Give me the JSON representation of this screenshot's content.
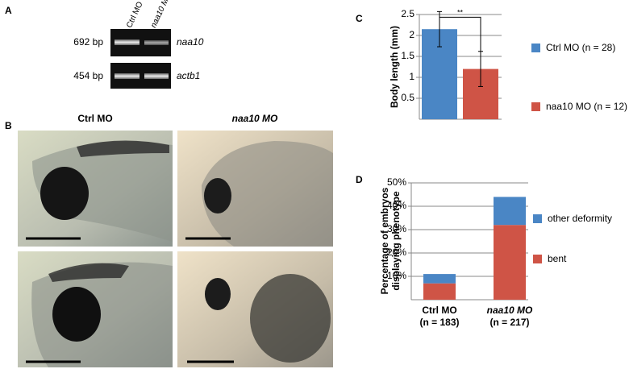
{
  "panels": [
    "A",
    "B",
    "C",
    "D"
  ],
  "gel": {
    "lanes": [
      "Ctrl MO",
      "naa10 MO"
    ],
    "rows": [
      {
        "size": "692 bp",
        "gene": "naa10"
      },
      {
        "size": "454 bp",
        "gene": "actb1"
      }
    ]
  },
  "photos": {
    "columns": [
      "Ctrl MO",
      "naa10 MO"
    ]
  },
  "chart_data": [
    {
      "type": "bar",
      "ylabel": "Body length (mm)",
      "ylim": [
        0,
        2.5
      ],
      "yticks": [
        0.5,
        1,
        1.5,
        2,
        2.5
      ],
      "grid": true,
      "annotation": "**",
      "series": [
        {
          "name": "Ctrl MO (n = 28)",
          "color": "#4a86c5",
          "values": [
            2.15
          ],
          "errors": [
            0.42
          ]
        },
        {
          "name": "naa10 MO (n = 12)",
          "color": "#cf5446",
          "values": [
            1.2
          ],
          "errors": [
            0.42
          ]
        }
      ]
    },
    {
      "type": "stacked_bar",
      "ylabel": [
        "Percentage of embryos",
        "displaying phenotype"
      ],
      "ylim": [
        0,
        50
      ],
      "yticks": [
        {
          "value": 10,
          "label": "10%"
        },
        {
          "value": 20,
          "label": "20%"
        },
        {
          "value": 30,
          "label": "30%"
        },
        {
          "value": 40,
          "label": "40%"
        },
        {
          "value": 50,
          "label": "50%"
        }
      ],
      "grid": true,
      "categories": [
        "Ctrl MO",
        "naa10 MO"
      ],
      "category_notes": [
        "(n = 183)",
        "(n = 217)"
      ],
      "series": [
        {
          "name": "bent",
          "color": "#cf5446",
          "values": [
            7,
            32
          ]
        },
        {
          "name": "other deformity",
          "color": "#4a86c5",
          "values": [
            4,
            12
          ]
        }
      ]
    }
  ]
}
